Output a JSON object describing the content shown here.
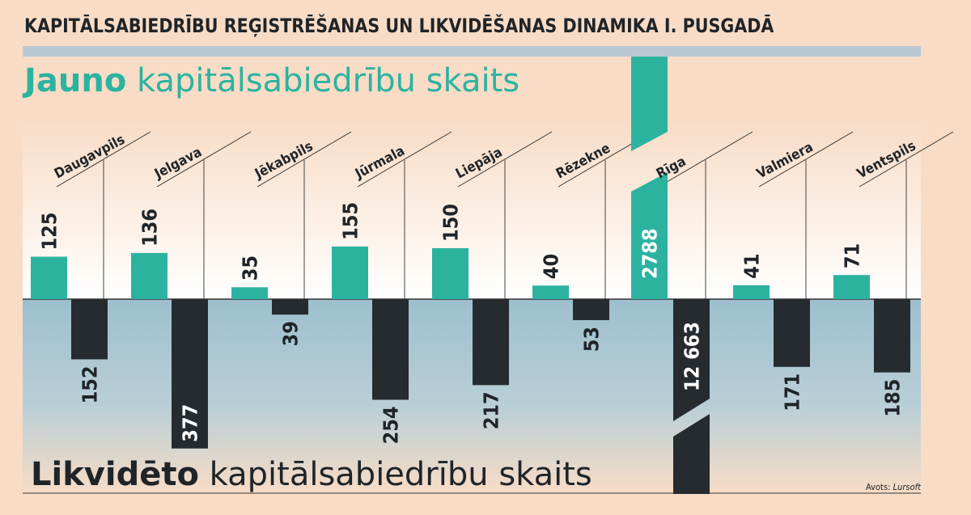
{
  "header": {
    "title": "KAPITĀLSABIEDRĪBU REĢISTRĒŠANAS UN LIKVIDĒŠANAS DINAMIKA I. PUSGADĀ"
  },
  "colors": {
    "background": "#f8dcc6",
    "new_bar": "#2cb3a0",
    "liquidated_bar": "#262b30",
    "lower_panel": "#a6c4d2",
    "top_rule": "#b9c9d4"
  },
  "chart_data": {
    "type": "bar",
    "title": "KAPITĀLSABIEDRĪBU REĢISTRĒŠANAS UN LIKVIDĒŠANAS DINAMIKA I. PUSGADĀ",
    "categories": [
      "Daugavpils",
      "Jelgava",
      "Jēkabpils",
      "Jūrmala",
      "Liepāja",
      "Rēzekne",
      "Rīga",
      "Valmiera",
      "Ventspils"
    ],
    "series": [
      {
        "name": "Jauno kapitālsabiedrību skaits",
        "name_bold": "Jauno",
        "name_rest": " kapitālsabiedrību skaits",
        "values": [
          125,
          136,
          35,
          155,
          150,
          40,
          2788,
          41,
          71
        ],
        "labels": [
          "125",
          "136",
          "35",
          "155",
          "150",
          "40",
          "2788",
          "41",
          "71"
        ]
      },
      {
        "name": "Likvidēto kapitālsabiedrību skaits",
        "name_bold": "Likvidēto",
        "name_rest": " kapitālsabiedrību skaits",
        "values": [
          152,
          377,
          39,
          254,
          217,
          53,
          12663,
          171,
          185
        ],
        "labels": [
          "152",
          "377",
          "39",
          "254",
          "217",
          "53",
          "12 663",
          "171",
          "185"
        ]
      }
    ],
    "axis_break_category": "Rīga",
    "source_prefix": "Avots: ",
    "source_name": "Lursoft"
  }
}
